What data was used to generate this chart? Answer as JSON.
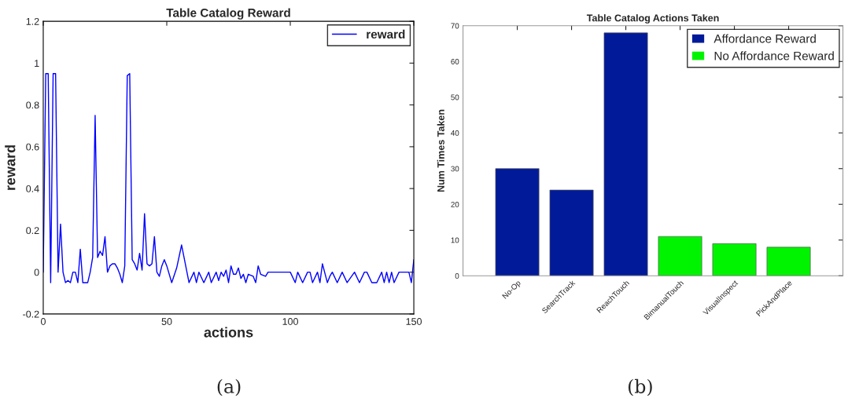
{
  "chart_data": [
    {
      "type": "line",
      "title": "Table Catalog Reward",
      "xlabel": "actions",
      "ylabel": "reward",
      "legend": "top right",
      "grid": false,
      "xlim": [
        0,
        150
      ],
      "xticks": [
        0,
        50,
        100,
        150
      ],
      "ylim": [
        -0.2,
        1.2
      ],
      "yticks": [
        {
          "value": -0.2,
          "label": "-0.2"
        },
        0,
        0.2,
        0.4,
        0.6,
        0.8,
        1,
        1.2
      ],
      "annotations": [
        "(a)"
      ],
      "series": [
        {
          "name": "reward",
          "color": "#0000ff",
          "x": [
            0,
            1,
            2,
            3,
            4,
            5,
            6,
            7,
            8,
            9,
            10,
            11,
            12,
            13,
            14,
            15,
            16,
            17,
            18,
            19,
            20,
            21,
            22,
            23,
            24,
            25,
            26,
            27,
            28,
            29,
            30,
            31,
            32,
            33,
            34,
            35,
            36,
            37,
            38,
            39,
            40,
            41,
            42,
            43,
            44,
            45,
            46,
            47,
            48,
            49,
            50,
            52,
            54,
            56,
            59,
            61,
            62,
            63,
            65,
            67,
            68,
            70,
            71,
            72,
            73,
            74,
            75,
            76,
            77,
            78,
            79,
            80,
            81,
            82,
            83,
            85,
            86,
            87,
            88,
            90,
            91,
            100,
            102,
            103,
            105,
            107,
            108,
            109,
            111,
            112,
            113,
            115,
            116,
            117,
            119,
            121,
            123,
            126,
            128,
            130,
            131,
            133,
            135,
            137,
            138,
            139,
            140,
            141,
            142,
            144,
            148,
            149,
            150
          ],
          "values": [
            0,
            0.95,
            0.95,
            -0.05,
            0.95,
            0.95,
            0,
            0.23,
            0,
            -0.05,
            -0.04,
            -0.05,
            0,
            0,
            -0.05,
            0.11,
            -0.05,
            -0.05,
            -0.05,
            0,
            0.07,
            0.75,
            0.07,
            0.1,
            0.08,
            0.17,
            0,
            0.03,
            0.04,
            0.04,
            0.02,
            -0.01,
            -0.05,
            0.03,
            0.94,
            0.95,
            0.06,
            0.04,
            0.01,
            0.09,
            0.01,
            0.28,
            0.04,
            0.03,
            0.04,
            0.17,
            0,
            -0.02,
            0.03,
            0.06,
            0.03,
            -0.05,
            0.02,
            0.13,
            -0.05,
            0,
            -0.05,
            0,
            -0.05,
            0,
            -0.05,
            0,
            -0.04,
            0,
            -0.02,
            0.01,
            -0.05,
            0.03,
            -0.01,
            -0.01,
            0.02,
            -0.03,
            -0.01,
            -0.05,
            -0.01,
            -0.02,
            -0.05,
            0.03,
            -0.01,
            -0.02,
            0,
            0,
            -0.05,
            0,
            -0.05,
            0,
            0,
            -0.05,
            0,
            -0.05,
            0.04,
            -0.05,
            -0.02,
            0,
            -0.05,
            0,
            -0.05,
            0,
            -0.05,
            0,
            0,
            -0.05,
            -0.05,
            0,
            -0.05,
            0,
            -0.05,
            0,
            -0.05,
            0,
            0,
            -0.05,
            0.06
          ]
        }
      ]
    },
    {
      "type": "bar",
      "title": "Table Catalog Actions Taken",
      "ylabel": "Num Times Taken",
      "legend": "top right",
      "grid": false,
      "categories": [
        "No-Op",
        "SearchTrack",
        "ReachTouch",
        "BimanualTouch",
        "VisualInspect",
        "PickAndPlace"
      ],
      "ylim": [
        0,
        70
      ],
      "yticks": [
        0,
        10,
        20,
        30,
        40,
        50,
        60,
        70
      ],
      "annotations": [
        "(b)"
      ],
      "series": [
        {
          "name": "Affordance Reward",
          "color": "#001a9a",
          "values": [
            30,
            24,
            68,
            null,
            null,
            null
          ]
        },
        {
          "name": "No Affordance Reward",
          "color": "#00f400",
          "values": [
            null,
            null,
            null,
            11,
            9,
            8
          ]
        }
      ]
    }
  ]
}
